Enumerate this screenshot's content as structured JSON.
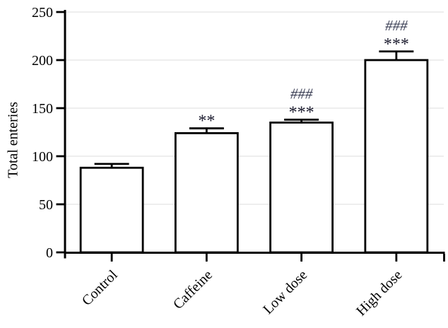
{
  "figure": {
    "background": "#ffffff"
  },
  "chart_data": {
    "type": "bar",
    "title": "",
    "xlabel": "",
    "ylabel": "Total enteries",
    "categories": [
      "Control",
      "Caffeine",
      "Low dose",
      "High dose"
    ],
    "values": [
      88,
      124,
      135,
      200
    ],
    "errors": [
      4,
      5,
      3,
      9
    ],
    "annotations": [
      {
        "category": "Control",
        "stars": "",
        "hashes": ""
      },
      {
        "category": "Caffeine",
        "stars": "**",
        "hashes": ""
      },
      {
        "category": "Low dose",
        "stars": "***",
        "hashes": "###"
      },
      {
        "category": "High dose",
        "stars": "***",
        "hashes": "###"
      }
    ],
    "ylim": [
      0,
      250
    ],
    "yticks": [
      0,
      50,
      100,
      150,
      200,
      250
    ],
    "grid": "horizontal",
    "legend": "none",
    "bar_fill": "#ffffff",
    "bar_stroke": "#000000",
    "axis_color": "#000000",
    "tick_label_color": "#000000",
    "grid_color": "#e8e8e8",
    "star_color": "#1b1b2e",
    "hash_color": "#3a3e54"
  }
}
